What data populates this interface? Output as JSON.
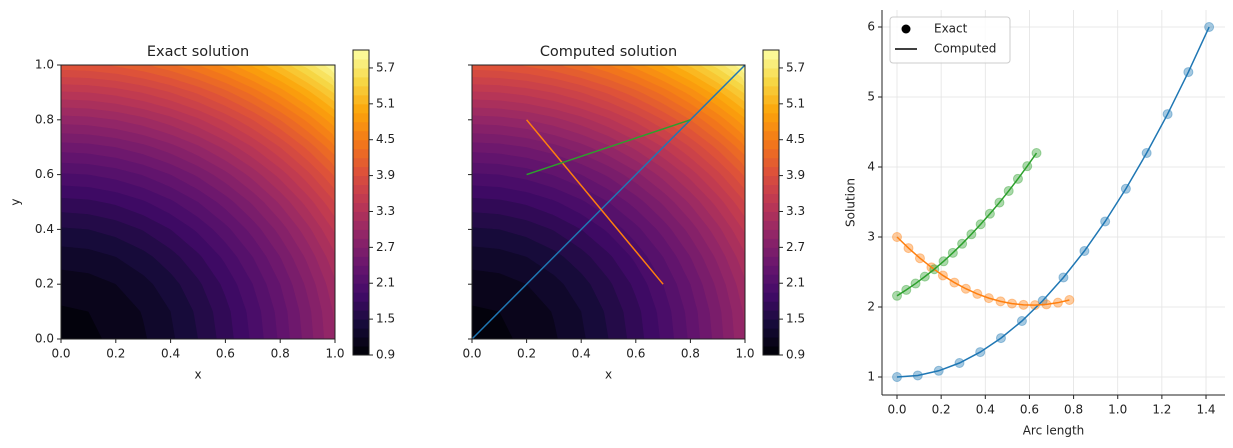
{
  "chart_data": [
    {
      "type": "contourf",
      "title": "Exact solution",
      "xlabel": "x",
      "ylabel": "y",
      "xlim": [
        0,
        1
      ],
      "ylim": [
        0,
        1
      ],
      "xticks": [
        {
          "value": 0,
          "label": "0.0"
        },
        0.2,
        0.4,
        0.6,
        0.8,
        {
          "value": 1,
          "label": "1.0"
        }
      ],
      "yticks": [
        {
          "value": 0,
          "label": "0.0"
        },
        0.2,
        0.4,
        0.6,
        0.8,
        {
          "value": 1,
          "label": "1.0"
        }
      ],
      "grid_x": [
        0,
        0.1,
        0.2,
        0.3,
        0.4,
        0.5,
        0.6,
        0.7,
        0.8,
        0.9,
        1
      ],
      "grid_y": [
        0,
        0.1,
        0.2,
        0.3,
        0.4,
        0.5,
        0.6,
        0.7,
        0.8,
        0.9,
        1
      ],
      "z": [
        [
          1,
          1.02,
          1.08,
          1.18,
          1.32,
          1.5,
          1.72,
          1.98,
          2.28,
          2.62,
          3
        ],
        [
          1.03,
          1.05,
          1.11,
          1.21,
          1.35,
          1.53,
          1.75,
          2.01,
          2.31,
          2.65,
          3.03
        ],
        [
          1.12,
          1.14,
          1.2,
          1.3,
          1.44,
          1.62,
          1.84,
          2.1,
          2.4,
          2.74,
          3.12
        ],
        [
          1.27,
          1.29,
          1.35,
          1.45,
          1.59,
          1.77,
          1.99,
          2.25,
          2.55,
          2.89,
          3.27
        ],
        [
          1.48,
          1.5,
          1.56,
          1.66,
          1.8,
          1.98,
          2.2,
          2.46,
          2.76,
          3.1,
          3.48
        ],
        [
          1.75,
          1.77,
          1.83,
          1.93,
          2.07,
          2.25,
          2.47,
          2.73,
          3.03,
          3.37,
          3.75
        ],
        [
          2.08,
          2.1,
          2.16,
          2.26,
          2.4,
          2.58,
          2.8,
          3.06,
          3.36,
          3.7,
          4.08
        ],
        [
          2.47,
          2.49,
          2.55,
          2.65,
          2.79,
          2.97,
          3.19,
          3.45,
          3.75,
          4.09,
          4.47
        ],
        [
          2.92,
          2.94,
          3,
          3.1,
          3.24,
          3.42,
          3.64,
          3.9,
          4.2,
          4.54,
          4.92
        ],
        [
          3.43,
          3.45,
          3.51,
          3.61,
          3.75,
          3.93,
          4.15,
          4.41,
          4.71,
          5.05,
          5.43
        ],
        [
          4,
          4.02,
          4.08,
          4.18,
          4.32,
          4.5,
          4.72,
          4.98,
          5.28,
          5.62,
          6
        ]
      ],
      "colormap": "inferno",
      "clim": [
        0.9,
        6.0
      ],
      "cticks": [
        0.9,
        1.5,
        2.1,
        2.7,
        3.3,
        3.9,
        4.5,
        5.1,
        5.7
      ]
    },
    {
      "type": "contourf",
      "title": "Computed solution",
      "xlabel": "x",
      "xlim": [
        0,
        1
      ],
      "ylim": [
        0,
        1
      ],
      "xticks": [
        {
          "value": 0,
          "label": "0.0"
        },
        0.2,
        0.4,
        0.6,
        0.8,
        {
          "value": 1,
          "label": "1.0"
        }
      ],
      "yticks": [
        0,
        0.2,
        0.4,
        0.6,
        0.8,
        1
      ],
      "ytick_labels": false,
      "grid_x": [
        0,
        0.1,
        0.2,
        0.3,
        0.4,
        0.5,
        0.6,
        0.7,
        0.8,
        0.9,
        1
      ],
      "grid_y": [
        0,
        0.1,
        0.2,
        0.3,
        0.4,
        0.5,
        0.6,
        0.7,
        0.8,
        0.9,
        1
      ],
      "z": [
        [
          1,
          1.02,
          1.08,
          1.18,
          1.32,
          1.5,
          1.72,
          1.98,
          2.28,
          2.62,
          3
        ],
        [
          1.03,
          1.05,
          1.11,
          1.21,
          1.35,
          1.53,
          1.75,
          2.01,
          2.31,
          2.65,
          3.03
        ],
        [
          1.12,
          1.14,
          1.2,
          1.3,
          1.44,
          1.62,
          1.84,
          2.1,
          2.4,
          2.74,
          3.12
        ],
        [
          1.27,
          1.29,
          1.35,
          1.45,
          1.59,
          1.77,
          1.99,
          2.25,
          2.55,
          2.89,
          3.27
        ],
        [
          1.48,
          1.5,
          1.56,
          1.66,
          1.8,
          1.98,
          2.2,
          2.46,
          2.76,
          3.1,
          3.48
        ],
        [
          1.75,
          1.77,
          1.83,
          1.93,
          2.07,
          2.25,
          2.47,
          2.73,
          3.03,
          3.37,
          3.75
        ],
        [
          2.08,
          2.1,
          2.16,
          2.26,
          2.4,
          2.58,
          2.8,
          3.06,
          3.36,
          3.7,
          4.08
        ],
        [
          2.47,
          2.49,
          2.55,
          2.65,
          2.79,
          2.97,
          3.19,
          3.45,
          3.75,
          4.09,
          4.47
        ],
        [
          2.92,
          2.94,
          3,
          3.1,
          3.24,
          3.42,
          3.64,
          3.9,
          4.2,
          4.54,
          4.92
        ],
        [
          3.43,
          3.45,
          3.51,
          3.61,
          3.75,
          3.93,
          4.15,
          4.41,
          4.71,
          5.05,
          5.43
        ],
        [
          4,
          4.02,
          4.08,
          4.18,
          4.32,
          4.5,
          4.72,
          4.98,
          5.28,
          5.62,
          6
        ]
      ],
      "colormap": "inferno",
      "clim": [
        0.9,
        6.0
      ],
      "cticks": [
        0.9,
        1.5,
        2.1,
        2.7,
        3.3,
        3.9,
        4.5,
        5.1,
        5.7
      ],
      "lines": [
        {
          "color": "#1f77b4",
          "x": [
            0,
            1
          ],
          "y": [
            0,
            1
          ]
        },
        {
          "color": "#ff7f0e",
          "x": [
            0.2,
            0.7
          ],
          "y": [
            0.8,
            0.2
          ]
        },
        {
          "color": "#2ca02c",
          "x": [
            0.2,
            0.8
          ],
          "y": [
            0.6,
            0.8
          ]
        }
      ]
    },
    {
      "type": "line",
      "xlabel": "Arc length",
      "ylabel": "Solution",
      "xlim": [
        -0.068,
        1.486
      ],
      "ylim": [
        0.743,
        6.243
      ],
      "xticks": [
        {
          "value": 0,
          "label": "0.0"
        },
        0.2,
        0.4,
        0.6,
        0.8,
        {
          "value": 1,
          "label": "1.0"
        },
        1.2,
        1.4
      ],
      "yticks": [
        1,
        2,
        3,
        4,
        5,
        6
      ],
      "grid": true,
      "legend": {
        "loc": "upper left",
        "entries": [
          {
            "label": "Exact",
            "marker": "o",
            "color": "#000000"
          },
          {
            "label": "Computed",
            "marker": "-",
            "color": "#000000"
          }
        ]
      },
      "series": [
        {
          "color": "#1f77b4",
          "x": [
            0,
            0.094,
            0.189,
            0.283,
            0.377,
            0.471,
            0.566,
            0.66,
            0.754,
            0.849,
            0.943,
            1.037,
            1.131,
            1.226,
            1.32,
            1.414
          ],
          "values": [
            1,
            1.022,
            1.089,
            1.2,
            1.356,
            1.556,
            1.8,
            2.089,
            2.422,
            2.8,
            3.222,
            3.689,
            4.2,
            4.756,
            5.356,
            6
          ]
        },
        {
          "color": "#ff7f0e",
          "x": [
            0,
            0.052,
            0.104,
            0.156,
            0.208,
            0.26,
            0.312,
            0.364,
            0.416,
            0.469,
            0.521,
            0.573,
            0.625,
            0.677,
            0.729,
            0.781
          ],
          "values": [
            3,
            2.842,
            2.697,
            2.567,
            2.451,
            2.349,
            2.261,
            2.187,
            2.127,
            2.081,
            2.049,
            2.031,
            2.027,
            2.037,
            2.062,
            2.1
          ]
        },
        {
          "color": "#2ca02c",
          "x": [
            0,
            0.042,
            0.084,
            0.126,
            0.169,
            0.211,
            0.253,
            0.295,
            0.337,
            0.379,
            0.421,
            0.464,
            0.506,
            0.548,
            0.59,
            0.632
          ],
          "values": [
            2.16,
            2.244,
            2.335,
            2.434,
            2.54,
            2.653,
            2.774,
            2.903,
            3.039,
            3.182,
            3.333,
            3.492,
            3.658,
            3.831,
            4.012,
            4.2
          ]
        }
      ]
    }
  ]
}
